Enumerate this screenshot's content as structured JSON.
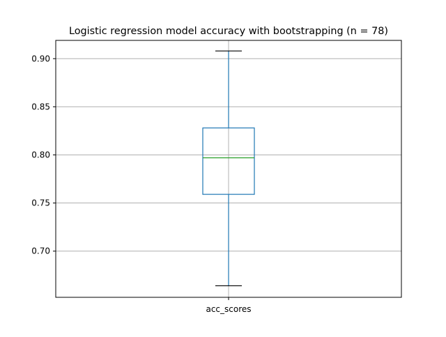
{
  "chart_data": {
    "type": "box",
    "title": "Logistic regression model accuracy with bootstrapping (n = 78)",
    "categories": [
      "acc_scores"
    ],
    "series": [
      {
        "name": "acc_scores",
        "whisker_low": 0.664,
        "q1": 0.759,
        "median": 0.797,
        "q3": 0.828,
        "whisker_high": 0.908
      }
    ],
    "xlabel": "",
    "ylabel": "",
    "ylim": [
      0.652,
      0.919
    ],
    "yticks": [
      0.7,
      0.75,
      0.8,
      0.85,
      0.9
    ],
    "ytick_labels": [
      "0.70",
      "0.75",
      "0.80",
      "0.85",
      "0.90"
    ],
    "grid": true,
    "colors": {
      "box": "#1f77b4",
      "whisker": "#1f77b4",
      "cap": "#000000",
      "median": "#2ca02c",
      "grid": "#b0b0b0",
      "axes": "#000000"
    }
  }
}
